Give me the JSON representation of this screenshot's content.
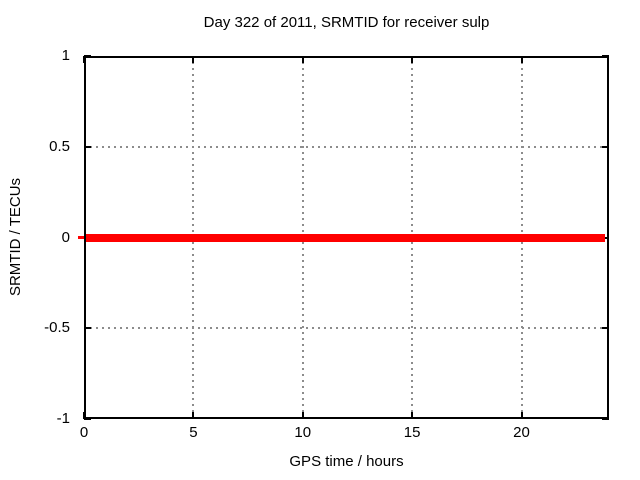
{
  "chart_data": {
    "type": "line",
    "title": "Day 322 of 2011, SRMTID for receiver sulp",
    "xlabel": "GPS time / hours",
    "ylabel": "SRMTID / TECUs",
    "xlim": [
      0,
      24
    ],
    "ylim": [
      -1,
      1
    ],
    "x_ticks": [
      0,
      5,
      10,
      15,
      20
    ],
    "x_tick_labels": [
      "0",
      "5",
      "10",
      "15",
      "20"
    ],
    "y_ticks": [
      1,
      0.5,
      0,
      -0.5,
      -1
    ],
    "y_tick_labels": [
      "1",
      "0.5",
      "0",
      "-0.5",
      "-1"
    ],
    "grid": "dotted, at every major tick",
    "legend": "none",
    "series": [
      {
        "name": "SRMTID",
        "color": "#ff0000",
        "style": "thick solid horizontal line",
        "x": [
          0,
          23.8
        ],
        "y": [
          0,
          0
        ]
      }
    ]
  },
  "colors": {
    "background": "#ffffff",
    "plot_border": "#000000",
    "grid": "#8c8c8c",
    "series": "#ff0000",
    "text": "#000000"
  }
}
